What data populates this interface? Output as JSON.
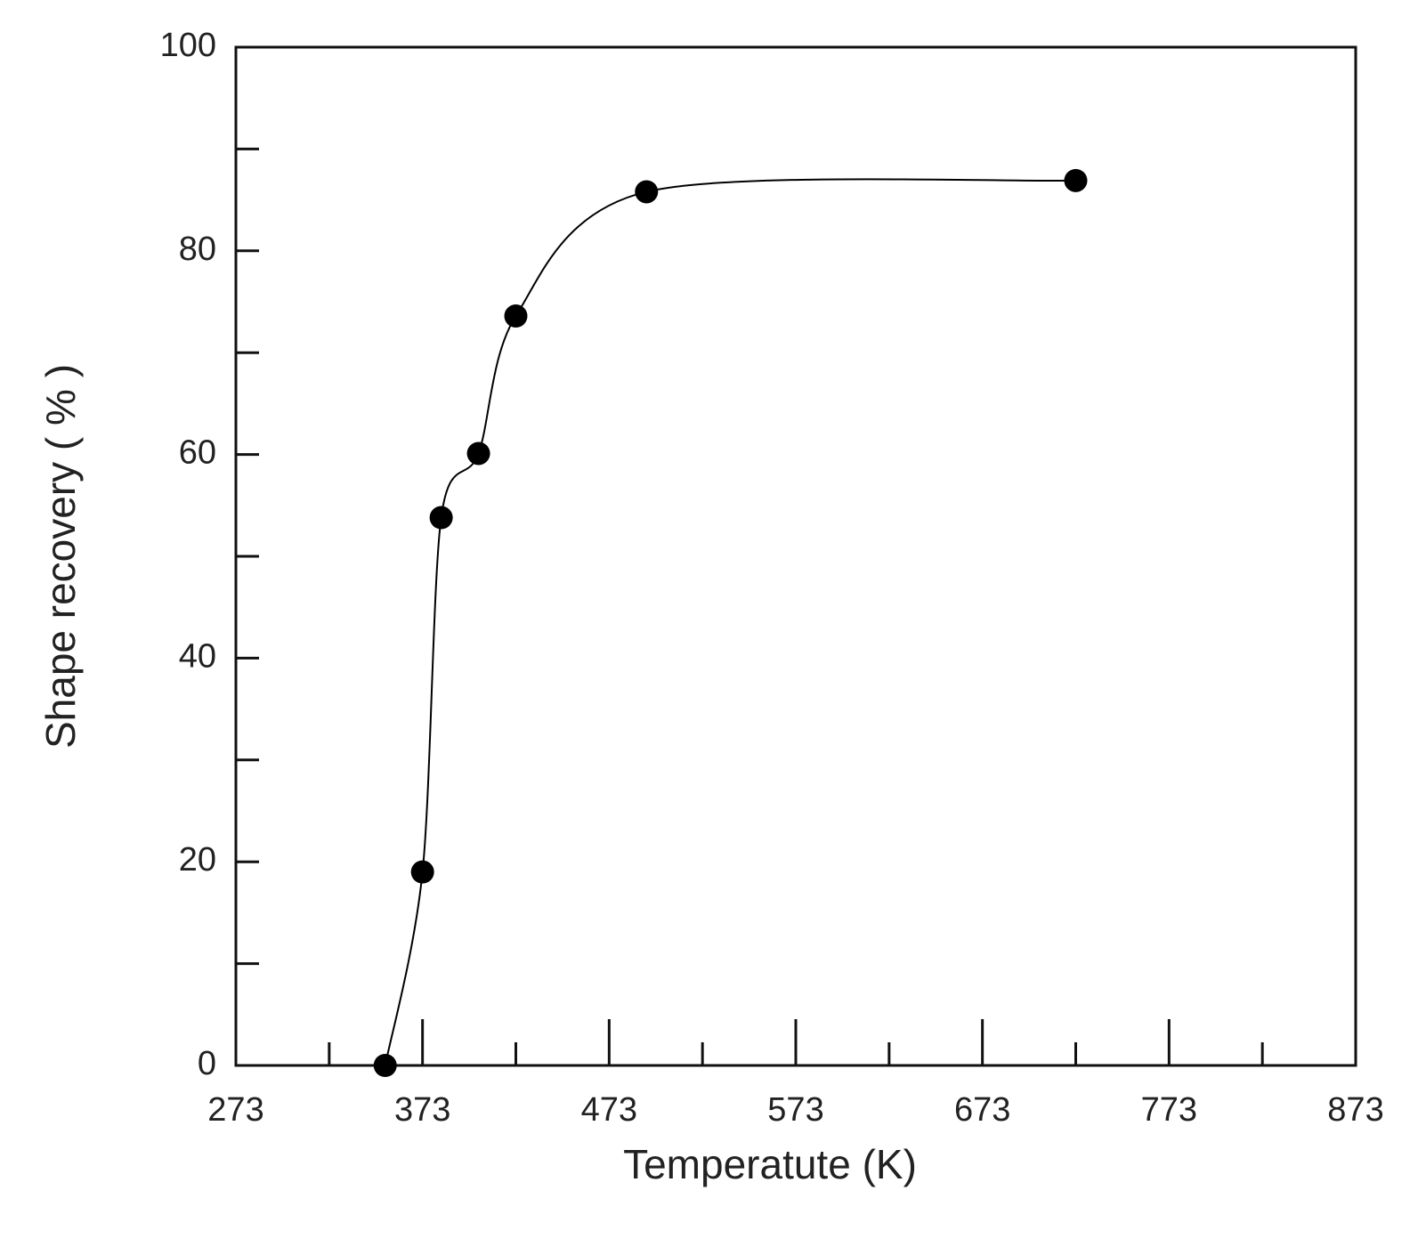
{
  "chart_data": {
    "type": "line",
    "x_label": "Temperatute (K)",
    "y_label": "Shape recovery ( % )",
    "x": [
      353,
      373,
      383,
      403,
      423,
      493,
      723
    ],
    "series": [
      {
        "color": "#000000",
        "values": [
          0,
          19,
          53.8,
          60.1,
          73.6,
          85.8,
          86.9
        ]
      }
    ],
    "xlim": [
      273,
      873
    ],
    "xticks": [
      273,
      373,
      473,
      573,
      673,
      773,
      873
    ],
    "xminorticks": [
      323,
      423,
      523,
      623,
      723,
      823
    ],
    "ylim": [
      0,
      100
    ],
    "yticks": [
      0,
      20,
      40,
      60,
      80,
      100
    ],
    "yminorticks": [
      10,
      30,
      50,
      70,
      90
    ],
    "grid": false
  }
}
